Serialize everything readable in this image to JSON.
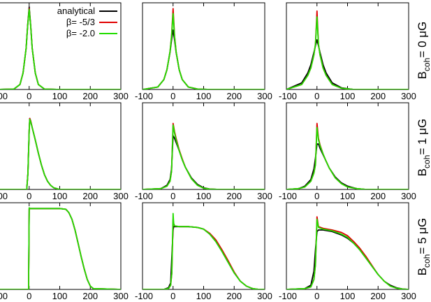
{
  "figure": {
    "row_labels": [
      {
        "main": "B",
        "sub": "coh",
        "rest": "= 0 μG"
      },
      {
        "main": "B",
        "sub": "coh",
        "rest": "= 1 μG"
      },
      {
        "main": "B",
        "sub": "coh",
        "rest": "= 5 μG"
      }
    ],
    "x_tick_labels": [
      "-100",
      "0",
      "100",
      "200",
      "300"
    ],
    "legend": [
      {
        "label": "analytical",
        "color": "#000000"
      },
      {
        "label": "β= -5/3",
        "color": "#e00000"
      },
      {
        "label": "β= -2.0",
        "color": "#22dd00"
      }
    ]
  },
  "chart_data": [
    {
      "type": "line",
      "row": 0,
      "col": 0,
      "xlim": [
        -100,
        300
      ],
      "ylim": [
        0,
        1.05
      ],
      "x": [
        -100,
        -50,
        -30,
        -20,
        -10,
        -5,
        0,
        5,
        10,
        20,
        30,
        50,
        100,
        300
      ],
      "series": [
        {
          "name": "analytical",
          "color": "#000000",
          "y": [
            0,
            0.005,
            0.06,
            0.2,
            0.5,
            0.78,
            1.0,
            0.78,
            0.5,
            0.2,
            0.06,
            0.005,
            0,
            0
          ]
        },
        {
          "name": "β= -5/3",
          "color": "#e00000",
          "y": [
            0,
            0.005,
            0.06,
            0.2,
            0.5,
            0.77,
            0.98,
            0.77,
            0.5,
            0.2,
            0.06,
            0.005,
            0,
            0
          ]
        },
        {
          "name": "β= -2.0",
          "color": "#22dd00",
          "y": [
            0,
            0.005,
            0.06,
            0.2,
            0.5,
            0.77,
            0.97,
            0.77,
            0.5,
            0.2,
            0.06,
            0.005,
            0,
            0
          ]
        }
      ]
    },
    {
      "type": "line",
      "row": 0,
      "col": 1,
      "xlim": [
        -100,
        300
      ],
      "ylim": [
        0,
        1.05
      ],
      "x": [
        -100,
        -50,
        -30,
        -20,
        -10,
        -5,
        0,
        5,
        10,
        20,
        30,
        50,
        80,
        120,
        300
      ],
      "series": [
        {
          "name": "analytical",
          "color": "#000000",
          "y": [
            0,
            0.03,
            0.12,
            0.24,
            0.45,
            0.6,
            0.72,
            0.6,
            0.45,
            0.24,
            0.12,
            0.03,
            0.005,
            0,
            0
          ]
        },
        {
          "name": "β= -5/3",
          "color": "#e00000",
          "y": [
            0,
            0.03,
            0.12,
            0.24,
            0.46,
            0.65,
            0.98,
            0.65,
            0.46,
            0.24,
            0.12,
            0.03,
            0.005,
            0,
            0
          ]
        },
        {
          "name": "β= -2.0",
          "color": "#22dd00",
          "y": [
            0,
            0.03,
            0.12,
            0.24,
            0.46,
            0.64,
            0.92,
            0.64,
            0.46,
            0.24,
            0.12,
            0.03,
            0.005,
            0,
            0
          ]
        }
      ]
    },
    {
      "type": "line",
      "row": 0,
      "col": 2,
      "xlim": [
        -100,
        300
      ],
      "ylim": [
        0,
        1.05
      ],
      "x": [
        -100,
        -50,
        -30,
        -20,
        -10,
        -5,
        0,
        5,
        10,
        20,
        30,
        50,
        80,
        120,
        300
      ],
      "series": [
        {
          "name": "analytical",
          "color": "#000000",
          "y": [
            0,
            0.08,
            0.2,
            0.3,
            0.45,
            0.53,
            0.6,
            0.53,
            0.45,
            0.3,
            0.2,
            0.08,
            0.02,
            0,
            0
          ]
        },
        {
          "name": "β= -5/3",
          "color": "#e00000",
          "y": [
            0,
            0.06,
            0.17,
            0.26,
            0.42,
            0.55,
            0.95,
            0.55,
            0.42,
            0.26,
            0.17,
            0.06,
            0.015,
            0,
            0
          ]
        },
        {
          "name": "β= -2.0",
          "color": "#22dd00",
          "y": [
            0,
            0.06,
            0.17,
            0.26,
            0.42,
            0.55,
            0.88,
            0.55,
            0.42,
            0.26,
            0.17,
            0.06,
            0.015,
            0,
            0
          ]
        }
      ]
    },
    {
      "type": "line",
      "row": 1,
      "col": 0,
      "xlim": [
        -100,
        300
      ],
      "ylim": [
        0,
        1.05
      ],
      "x": [
        -100,
        -8,
        -4,
        0,
        2,
        5,
        10,
        20,
        30,
        40,
        50,
        60,
        70,
        80,
        100,
        300
      ],
      "series": [
        {
          "name": "analytical",
          "color": "#000000",
          "y": [
            0,
            0,
            0.2,
            0.72,
            0.86,
            0.83,
            0.75,
            0.6,
            0.44,
            0.3,
            0.18,
            0.1,
            0.05,
            0.02,
            0,
            0
          ]
        },
        {
          "name": "β= -5/3",
          "color": "#e00000",
          "y": [
            0,
            0,
            0.2,
            0.72,
            0.86,
            0.83,
            0.75,
            0.6,
            0.44,
            0.3,
            0.18,
            0.1,
            0.05,
            0.02,
            0,
            0
          ]
        },
        {
          "name": "β= -2.0",
          "color": "#22dd00",
          "y": [
            0,
            0,
            0.2,
            0.72,
            0.85,
            0.82,
            0.75,
            0.6,
            0.44,
            0.3,
            0.18,
            0.1,
            0.05,
            0.02,
            0,
            0
          ]
        }
      ]
    },
    {
      "type": "line",
      "row": 1,
      "col": 1,
      "xlim": [
        -100,
        300
      ],
      "ylim": [
        0,
        1.05
      ],
      "x": [
        -100,
        -40,
        -20,
        -10,
        -5,
        0,
        5,
        10,
        20,
        30,
        40,
        60,
        80,
        100,
        120,
        150,
        300
      ],
      "series": [
        {
          "name": "analytical",
          "color": "#000000",
          "y": [
            0,
            0.01,
            0.05,
            0.12,
            0.25,
            0.65,
            0.62,
            0.57,
            0.47,
            0.36,
            0.27,
            0.14,
            0.06,
            0.02,
            0.005,
            0,
            0
          ]
        },
        {
          "name": "β= -5/3",
          "color": "#e00000",
          "y": [
            0,
            0.01,
            0.04,
            0.1,
            0.22,
            0.8,
            0.7,
            0.62,
            0.48,
            0.37,
            0.27,
            0.13,
            0.05,
            0.015,
            0.004,
            0,
            0
          ]
        },
        {
          "name": "β= -2.0",
          "color": "#22dd00",
          "y": [
            0,
            0.01,
            0.04,
            0.1,
            0.22,
            0.78,
            0.68,
            0.6,
            0.47,
            0.36,
            0.27,
            0.13,
            0.05,
            0.015,
            0.004,
            0,
            0
          ]
        }
      ]
    },
    {
      "type": "line",
      "row": 1,
      "col": 2,
      "xlim": [
        -100,
        300
      ],
      "ylim": [
        0,
        1.05
      ],
      "x": [
        -100,
        -60,
        -40,
        -20,
        -10,
        -5,
        0,
        5,
        10,
        20,
        30,
        40,
        60,
        80,
        100,
        130,
        160,
        300
      ],
      "series": [
        {
          "name": "analytical",
          "color": "#000000",
          "y": [
            0,
            0.01,
            0.04,
            0.12,
            0.25,
            0.38,
            0.55,
            0.55,
            0.5,
            0.42,
            0.34,
            0.26,
            0.15,
            0.08,
            0.04,
            0.01,
            0,
            0
          ]
        },
        {
          "name": "β= -5/3",
          "color": "#e00000",
          "y": [
            0,
            0.01,
            0.03,
            0.1,
            0.2,
            0.3,
            0.8,
            0.62,
            0.54,
            0.43,
            0.34,
            0.26,
            0.14,
            0.07,
            0.03,
            0.01,
            0,
            0
          ]
        },
        {
          "name": "β= -2.0",
          "color": "#22dd00",
          "y": [
            0,
            0.01,
            0.03,
            0.1,
            0.2,
            0.3,
            0.75,
            0.6,
            0.53,
            0.43,
            0.34,
            0.26,
            0.14,
            0.07,
            0.03,
            0.01,
            0,
            0
          ]
        }
      ]
    },
    {
      "type": "line",
      "row": 2,
      "col": 0,
      "xlim": [
        -100,
        300
      ],
      "ylim": [
        0,
        1.05
      ],
      "x": [
        -100,
        -2,
        0,
        2,
        50,
        100,
        120,
        130,
        140,
        150,
        160,
        170,
        180,
        190,
        200,
        210,
        300
      ],
      "series": [
        {
          "name": "analytical",
          "color": "#000000",
          "y": [
            0,
            0,
            0.98,
            0.98,
            0.98,
            0.98,
            0.97,
            0.93,
            0.85,
            0.72,
            0.56,
            0.4,
            0.25,
            0.12,
            0.04,
            0.01,
            0
          ]
        },
        {
          "name": "β= -5/3",
          "color": "#e00000",
          "y": [
            0,
            0,
            0.98,
            0.98,
            0.98,
            0.98,
            0.97,
            0.93,
            0.85,
            0.72,
            0.56,
            0.4,
            0.25,
            0.12,
            0.04,
            0.01,
            0
          ]
        },
        {
          "name": "β= -2.0",
          "color": "#22dd00",
          "y": [
            0,
            0,
            0.99,
            0.98,
            0.98,
            0.98,
            0.97,
            0.93,
            0.85,
            0.72,
            0.56,
            0.4,
            0.25,
            0.12,
            0.04,
            0.01,
            0
          ]
        }
      ]
    },
    {
      "type": "line",
      "row": 2,
      "col": 1,
      "xlim": [
        -100,
        300
      ],
      "ylim": [
        0,
        1.05
      ],
      "x": [
        -100,
        -30,
        -15,
        -8,
        -4,
        0,
        2,
        5,
        20,
        50,
        80,
        100,
        120,
        140,
        160,
        180,
        200,
        220,
        240,
        260,
        280,
        300
      ],
      "series": [
        {
          "name": "analytical",
          "color": "#000000",
          "y": [
            0,
            0,
            0.02,
            0.08,
            0.4,
            0.72,
            0.76,
            0.76,
            0.76,
            0.76,
            0.75,
            0.73,
            0.67,
            0.58,
            0.46,
            0.33,
            0.2,
            0.1,
            0.04,
            0.01,
            0,
            0
          ]
        },
        {
          "name": "β= -5/3",
          "color": "#e00000",
          "y": [
            0,
            0,
            0.01,
            0.05,
            0.2,
            0.85,
            0.8,
            0.77,
            0.76,
            0.76,
            0.75,
            0.73,
            0.68,
            0.6,
            0.48,
            0.35,
            0.21,
            0.1,
            0.04,
            0.01,
            0,
            0
          ]
        },
        {
          "name": "β= -2.0",
          "color": "#22dd00",
          "y": [
            0,
            0,
            0.01,
            0.05,
            0.2,
            0.92,
            0.8,
            0.77,
            0.76,
            0.76,
            0.75,
            0.73,
            0.67,
            0.58,
            0.46,
            0.33,
            0.2,
            0.1,
            0.04,
            0.01,
            0,
            0
          ]
        }
      ]
    },
    {
      "type": "line",
      "row": 2,
      "col": 2,
      "xlim": [
        -100,
        300
      ],
      "ylim": [
        0,
        1.05
      ],
      "x": [
        -100,
        -40,
        -20,
        -10,
        -5,
        0,
        5,
        20,
        50,
        80,
        100,
        120,
        140,
        160,
        180,
        200,
        220,
        240,
        260,
        280,
        300
      ],
      "series": [
        {
          "name": "analytical",
          "color": "#000000",
          "y": [
            0,
            0.01,
            0.05,
            0.22,
            0.48,
            0.7,
            0.72,
            0.72,
            0.7,
            0.66,
            0.62,
            0.56,
            0.48,
            0.38,
            0.28,
            0.18,
            0.1,
            0.05,
            0.02,
            0.005,
            0
          ]
        },
        {
          "name": "β= -5/3",
          "color": "#e00000",
          "y": [
            0,
            0.01,
            0.03,
            0.12,
            0.3,
            0.88,
            0.76,
            0.74,
            0.72,
            0.69,
            0.65,
            0.58,
            0.5,
            0.4,
            0.29,
            0.18,
            0.1,
            0.04,
            0.015,
            0.004,
            0
          ]
        },
        {
          "name": "β= -2.0",
          "color": "#22dd00",
          "y": [
            0,
            0.01,
            0.03,
            0.12,
            0.3,
            0.85,
            0.75,
            0.73,
            0.71,
            0.67,
            0.63,
            0.56,
            0.48,
            0.38,
            0.28,
            0.18,
            0.1,
            0.04,
            0.015,
            0.004,
            0
          ]
        }
      ]
    }
  ]
}
